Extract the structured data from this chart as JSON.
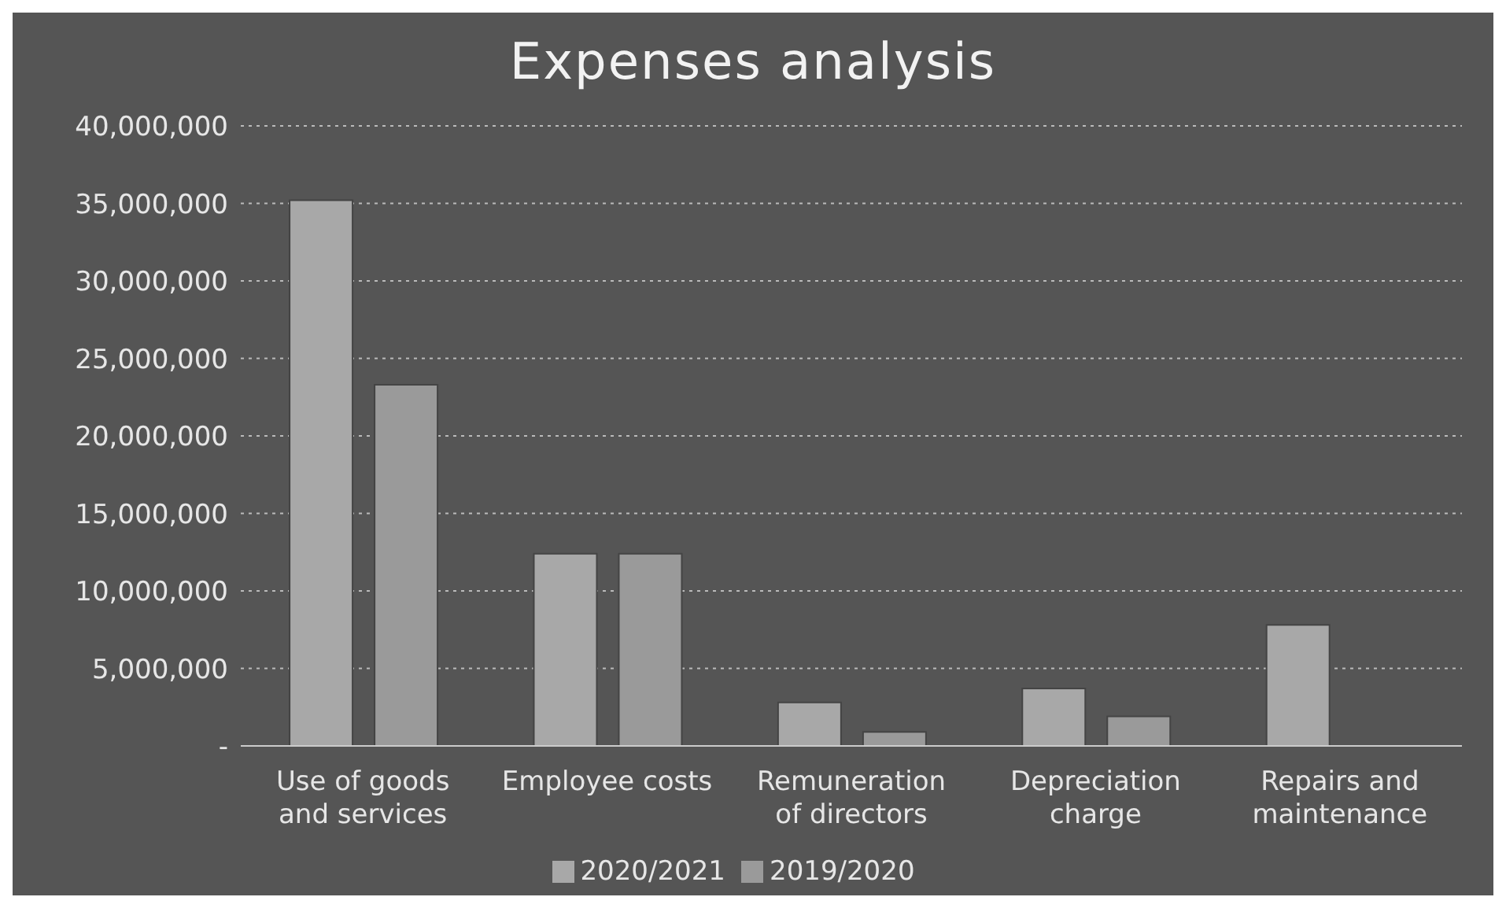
{
  "chart_data": {
    "type": "bar",
    "title": "Expenses analysis",
    "categories": [
      "Use of goods and services",
      "Employee costs",
      "Remuneration of directors",
      "Depreciation charge",
      "Repairs and maintenance"
    ],
    "series": [
      {
        "name": "2020/2021",
        "color": "#a8a8a8",
        "values": [
          35200000,
          12400000,
          2800000,
          3700000,
          7800000
        ]
      },
      {
        "name": "2019/2020",
        "color": "#9a9a9a",
        "values": [
          23300000,
          12400000,
          900000,
          1900000,
          0
        ]
      }
    ],
    "ylim": [
      0,
      40000000
    ],
    "yticks": [
      {
        "value": 0,
        "label": "-"
      },
      {
        "value": 5000000,
        "label": "5,000,000"
      },
      {
        "value": 10000000,
        "label": "10,000,000"
      },
      {
        "value": 15000000,
        "label": "15,000,000"
      },
      {
        "value": 20000000,
        "label": "20,000,000"
      },
      {
        "value": 25000000,
        "label": "25,000,000"
      },
      {
        "value": 30000000,
        "label": "30,000,000"
      },
      {
        "value": 35000000,
        "label": "35,000,000"
      },
      {
        "value": 40000000,
        "label": "40,000,000"
      }
    ],
    "grid": "y",
    "legend": "bottom"
  }
}
